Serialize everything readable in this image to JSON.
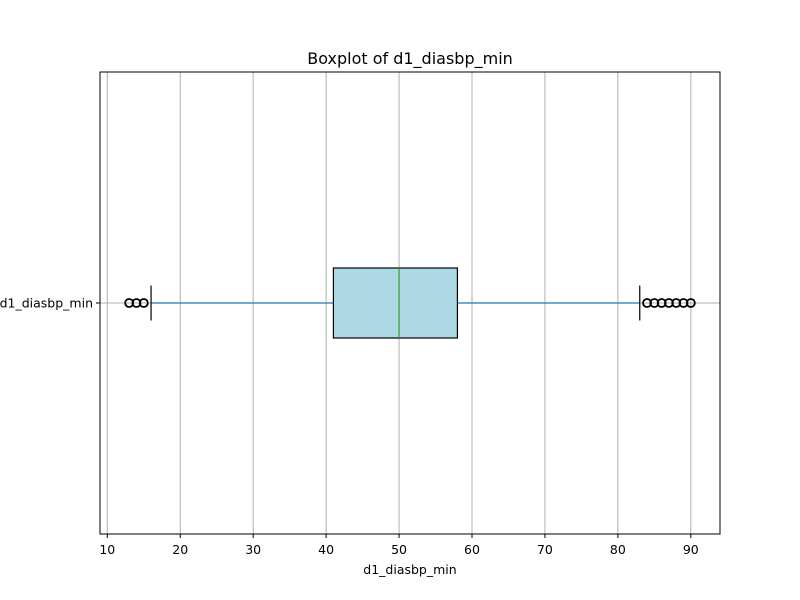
{
  "chart_data": {
    "type": "boxplot",
    "orientation": "horizontal",
    "title": "Boxplot of d1_diasbp_min",
    "xlabel": "d1_diasbp_min",
    "ylabel": "",
    "categories": [
      "d1_diasbp_min"
    ],
    "xlim": [
      9,
      94
    ],
    "x_ticks": [
      10,
      20,
      30,
      40,
      50,
      60,
      70,
      80,
      90
    ],
    "grid": "vertical",
    "box": {
      "whisker_low": 16,
      "q1": 41,
      "median": 50,
      "q3": 58,
      "whisker_high": 83
    },
    "outliers": [
      13,
      14,
      15,
      84,
      85,
      86,
      87,
      88,
      89,
      90
    ],
    "colors": {
      "box_fill": "#add8e6",
      "box_edge": "#000000",
      "median": "#2ca02c",
      "whisker": "#1f77b4",
      "grid": "#b0b0b0"
    }
  }
}
